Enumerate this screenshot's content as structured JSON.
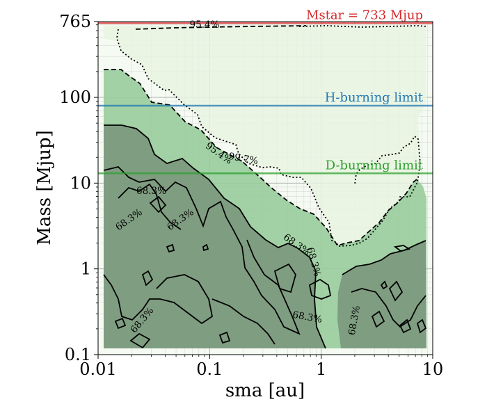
{
  "chart_data": {
    "type": "contour",
    "xlabel": "sma [au]",
    "ylabel": "Mass [Mjup]",
    "xscale": "log",
    "yscale": "log",
    "xlim": [
      0.01,
      10
    ],
    "ylim": [
      0.1,
      765
    ],
    "x_ticks": [
      {
        "value": 0.01,
        "label": "0.01"
      },
      {
        "value": 0.1,
        "label": "0.1"
      },
      {
        "value": 1,
        "label": "1"
      },
      {
        "value": 10,
        "label": "10"
      }
    ],
    "y_ticks": [
      {
        "value": 0.1,
        "label": "0.1"
      },
      {
        "value": 1,
        "label": "1"
      },
      {
        "value": 10,
        "label": "10"
      },
      {
        "value": 100,
        "label": "100"
      },
      {
        "value": 765,
        "label": "765"
      }
    ],
    "grid": true,
    "reference_lines": [
      {
        "label": "Mstar = 733 Mjup",
        "y": 733,
        "color": "#d62728"
      },
      {
        "label": "H-burning limit",
        "y": 80,
        "color": "#1f77b4"
      },
      {
        "label": "D-burning limit",
        "y": 13,
        "color": "#2ca02c"
      }
    ],
    "contour_levels": [
      "68.3%",
      "95.4%",
      "99.7%"
    ],
    "contour_labels": [
      {
        "text": "95.4%",
        "x": 0.09,
        "y": 690,
        "angle": 0
      },
      {
        "text": "95.4%",
        "x": 0.12,
        "y": 22,
        "angle": 35
      },
      {
        "text": "99.7%",
        "x": 0.2,
        "y": 19,
        "angle": 10
      },
      {
        "text": "68.3%",
        "x": 0.03,
        "y": 8,
        "angle": 0
      },
      {
        "text": "68.3%",
        "x": 0.019,
        "y": 3.7,
        "angle": -35
      },
      {
        "text": "68.3%",
        "x": 0.055,
        "y": 3.7,
        "angle": -35
      },
      {
        "text": "68.3%",
        "x": 0.6,
        "y": 1.9,
        "angle": 35
      },
      {
        "text": "68.3%",
        "x": 0.85,
        "y": 1.2,
        "angle": 75
      },
      {
        "text": "68.3%",
        "x": 0.025,
        "y": 0.25,
        "angle": -50
      },
      {
        "text": "68.3%",
        "x": 0.75,
        "y": 0.27,
        "angle": 10
      },
      {
        "text": "68.3%",
        "x": 2.0,
        "y": 0.25,
        "angle": -80
      }
    ],
    "colors": {
      "region_997": "#e7f3e2",
      "region_954": "#98cc9b",
      "region_683": "#7d9a7f",
      "envelope": "#f5faf2"
    }
  }
}
